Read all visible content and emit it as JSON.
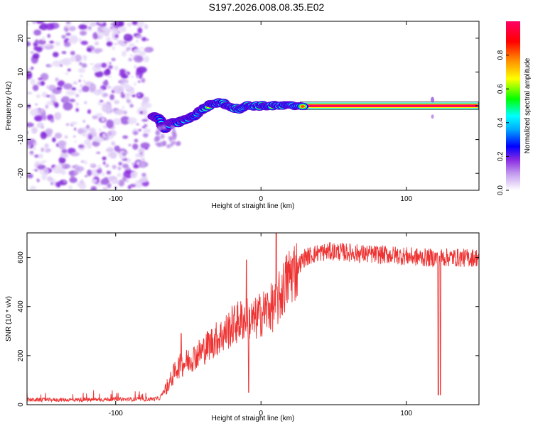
{
  "title": "S197.2026.008.08.35.E02",
  "chart_data": [
    {
      "type": "heatmap",
      "name": "spectrogram",
      "xlabel": "Height of straight line (km)",
      "ylabel": "Frequency (Hz)",
      "xlim": [
        -161,
        150
      ],
      "ylim": [
        -25,
        25
      ],
      "xticks": [
        -100,
        0,
        100
      ],
      "xtick_labels": [
        "-100",
        "0",
        "100"
      ],
      "yticks": [
        20,
        10,
        0,
        -10,
        -20
      ],
      "ytick_labels": [
        "20",
        "10",
        "0",
        "-10",
        "-20"
      ],
      "colorbar": {
        "label": "Normalized spectral amplitude",
        "range": [
          0,
          1
        ],
        "ticks": [
          0.0,
          0.2,
          0.4,
          0.6,
          0.8
        ],
        "tick_labels": [
          "0.0",
          "0.2",
          "0.4",
          "0.6",
          "0.8"
        ],
        "colors": [
          "#ffffff",
          "#d9c4f2",
          "#8a2be2",
          "#0000ff",
          "#00ffff",
          "#00ff00",
          "#ffff00",
          "#ff8000",
          "#ff0000",
          "#ff0066"
        ]
      },
      "noise_region_x": [
        -161,
        -77
      ],
      "signal_track": [
        {
          "x": -74,
          "y": -3
        },
        {
          "x": -70,
          "y": -4
        },
        {
          "x": -66,
          "y": -7
        },
        {
          "x": -62,
          "y": -5
        },
        {
          "x": -57,
          "y": -5
        },
        {
          "x": -52,
          "y": -4
        },
        {
          "x": -46,
          "y": -3
        },
        {
          "x": -40,
          "y": -1
        },
        {
          "x": -34,
          "y": 0.5
        },
        {
          "x": -28,
          "y": 1
        },
        {
          "x": -22,
          "y": 0
        },
        {
          "x": -16,
          "y": -1
        },
        {
          "x": -10,
          "y": 0
        },
        {
          "x": -4,
          "y": 0
        },
        {
          "x": 2,
          "y": 0
        },
        {
          "x": 8,
          "y": 0
        },
        {
          "x": 15,
          "y": 0
        },
        {
          "x": 22,
          "y": 0
        },
        {
          "x": 30,
          "y": 0
        },
        {
          "x": 150,
          "y": 0
        }
      ],
      "line_start_x": 27,
      "artifact_x": 118
    },
    {
      "type": "line",
      "name": "snr",
      "xlabel": "Height of straight line (km)",
      "ylabel": "SNR (10 * v/v)",
      "xlim": [
        -161,
        150
      ],
      "ylim": [
        0,
        700
      ],
      "xticks": [
        -100,
        0,
        100
      ],
      "xtick_labels": [
        "-100",
        "0",
        "100"
      ],
      "yticks": [
        0,
        200,
        400,
        600
      ],
      "ytick_labels": [
        "0",
        "200",
        "400",
        "600"
      ],
      "color": "#ee3333",
      "series": [
        {
          "name": "SNR",
          "x": [
            -161,
            -140,
            -120,
            -100,
            -80,
            -70,
            -66,
            -62,
            -58,
            -54,
            -50,
            -45,
            -40,
            -35,
            -30,
            -25,
            -20,
            -15,
            -10,
            -5,
            0,
            5,
            10,
            15,
            20,
            25,
            30,
            40,
            50,
            60,
            70,
            80,
            90,
            100,
            110,
            118,
            125,
            130,
            140,
            150
          ],
          "y": [
            20,
            20,
            20,
            22,
            22,
            25,
            60,
            100,
            150,
            165,
            180,
            200,
            220,
            250,
            270,
            290,
            320,
            340,
            350,
            340,
            370,
            390,
            400,
            470,
            530,
            560,
            600,
            620,
            625,
            620,
            615,
            612,
            610,
            605,
            600,
            598,
            600,
            600,
            598,
            600
          ]
        }
      ],
      "dips": [
        {
          "x": -8.5,
          "y": 50
        },
        {
          "x": 122,
          "y": 40
        },
        {
          "x": 123.5,
          "y": 40
        }
      ],
      "spikes": [
        {
          "x": -10,
          "y": 590
        },
        {
          "x": 10.5,
          "y": 700
        },
        {
          "x": -55,
          "y": 290
        }
      ]
    }
  ]
}
